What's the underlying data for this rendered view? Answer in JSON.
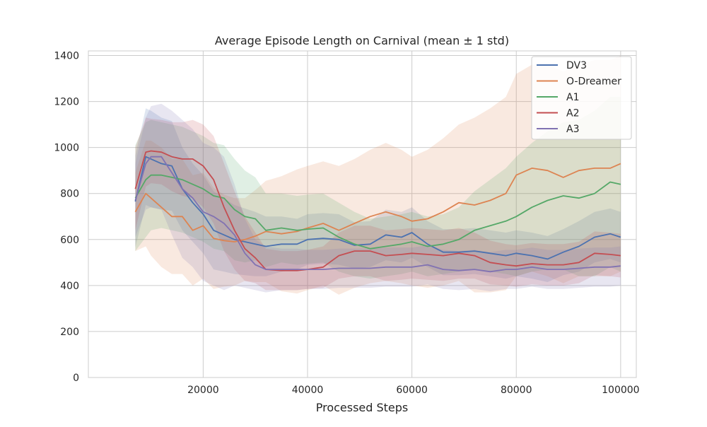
{
  "chart_data": {
    "type": "line",
    "title": "Average Episode Length on Carnival (mean ± 1 std)",
    "xlabel": "Processed Steps",
    "ylabel": "",
    "xlim": [
      -2000,
      103000
    ],
    "ylim": [
      0,
      1420
    ],
    "xticks": [
      20000,
      40000,
      60000,
      80000,
      100000
    ],
    "yticks": [
      0,
      200,
      400,
      600,
      800,
      1000,
      1200,
      1400
    ],
    "grid": true,
    "legend_position": "top-right",
    "x": [
      7000,
      9000,
      10000,
      12000,
      14000,
      16000,
      18000,
      20000,
      22000,
      24000,
      26000,
      28000,
      30000,
      32000,
      35000,
      38000,
      40000,
      43000,
      46000,
      49000,
      52000,
      55000,
      58000,
      60000,
      63000,
      66000,
      69000,
      72000,
      75000,
      78000,
      80000,
      83000,
      86000,
      89000,
      92000,
      95000,
      98000,
      100000
    ],
    "series": [
      {
        "name": "DV3",
        "color": "#4c72b0",
        "values": [
          765,
          960,
          950,
          930,
          920,
          820,
          760,
          710,
          640,
          620,
          600,
          590,
          580,
          570,
          580,
          580,
          600,
          605,
          600,
          575,
          580,
          620,
          610,
          630,
          580,
          545,
          545,
          550,
          540,
          530,
          540,
          530,
          515,
          545,
          570,
          610,
          625,
          610
        ],
        "std": [
          200,
          210,
          210,
          200,
          195,
          180,
          170,
          170,
          170,
          160,
          150,
          145,
          140,
          130,
          120,
          110,
          110,
          110,
          110,
          100,
          100,
          110,
          110,
          110,
          100,
          100,
          100,
          100,
          100,
          100,
          100,
          100,
          100,
          100,
          110,
          110,
          110,
          110
        ]
      },
      {
        "name": "O-Dreamer",
        "color": "#dd8452",
        "values": [
          720,
          800,
          780,
          740,
          700,
          700,
          640,
          660,
          605,
          595,
          590,
          600,
          615,
          635,
          625,
          635,
          650,
          670,
          640,
          670,
          700,
          720,
          700,
          680,
          690,
          720,
          760,
          750,
          770,
          800,
          880,
          910,
          900,
          870,
          900,
          910,
          910,
          930
        ],
        "std": [
          170,
          230,
          250,
          260,
          250,
          250,
          240,
          230,
          220,
          200,
          190,
          180,
          200,
          220,
          250,
          270,
          270,
          270,
          280,
          280,
          290,
          300,
          290,
          280,
          300,
          320,
          340,
          380,
          400,
          420,
          440,
          450,
          460,
          460,
          460,
          470,
          470,
          470
        ]
      },
      {
        "name": "A1",
        "color": "#55a868",
        "values": [
          780,
          860,
          880,
          880,
          870,
          860,
          840,
          820,
          790,
          780,
          730,
          700,
          690,
          640,
          650,
          640,
          645,
          650,
          610,
          580,
          560,
          570,
          580,
          590,
          570,
          580,
          600,
          640,
          660,
          680,
          700,
          740,
          770,
          790,
          780,
          800,
          850,
          840
        ],
        "std": [
          230,
          250,
          240,
          230,
          230,
          230,
          230,
          230,
          230,
          230,
          220,
          200,
          180,
          160,
          150,
          150,
          150,
          150,
          150,
          140,
          130,
          130,
          130,
          130,
          130,
          130,
          140,
          170,
          200,
          230,
          260,
          280,
          300,
          320,
          340,
          360,
          370,
          380
        ]
      },
      {
        "name": "A2",
        "color": "#c44e52",
        "values": [
          820,
          980,
          985,
          980,
          960,
          950,
          950,
          920,
          860,
          740,
          640,
          560,
          520,
          470,
          465,
          465,
          470,
          480,
          530,
          550,
          550,
          530,
          535,
          540,
          535,
          530,
          540,
          530,
          500,
          490,
          485,
          495,
          490,
          490,
          500,
          540,
          535,
          530
        ],
        "std": [
          180,
          150,
          140,
          140,
          150,
          160,
          170,
          180,
          190,
          190,
          170,
          140,
          110,
          90,
          85,
          85,
          85,
          90,
          100,
          110,
          110,
          110,
          110,
          110,
          110,
          110,
          110,
          100,
          95,
          90,
          90,
          90,
          90,
          90,
          90,
          95,
          95,
          95
        ]
      },
      {
        "name": "A3",
        "color": "#8172b2",
        "values": [
          770,
          930,
          960,
          960,
          890,
          820,
          780,
          720,
          700,
          670,
          620,
          540,
          490,
          470,
          470,
          470,
          470,
          470,
          475,
          475,
          475,
          480,
          480,
          480,
          490,
          470,
          465,
          470,
          460,
          470,
          470,
          480,
          470,
          470,
          475,
          480,
          480,
          485
        ],
        "std": [
          160,
          200,
          220,
          230,
          270,
          300,
          300,
          300,
          300,
          290,
          220,
          150,
          110,
          100,
          90,
          90,
          85,
          85,
          85,
          85,
          85,
          85,
          85,
          85,
          85,
          85,
          85,
          85,
          85,
          85,
          85,
          85,
          85,
          85,
          85,
          85,
          85,
          85
        ]
      }
    ]
  }
}
